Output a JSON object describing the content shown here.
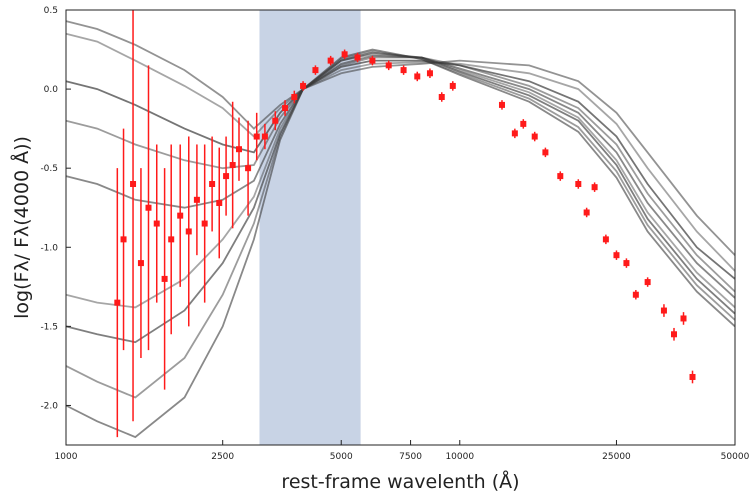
{
  "chart_data": {
    "type": "line",
    "xlabel": "rest-frame wavelenth (Å)",
    "ylabel": "log(Fλ/ Fλ(4000 Å))",
    "x_scale": "log",
    "xlim": [
      1000,
      50000
    ],
    "ylim": [
      -2.25,
      0.5
    ],
    "x_ticks": [
      {
        "value": 1000,
        "label": "1000"
      },
      {
        "value": 2500,
        "label": "2500"
      },
      {
        "value": 5000,
        "label": "5000"
      },
      {
        "value": 7500,
        "label": "7500"
      },
      {
        "value": 10000,
        "label": "10000"
      },
      {
        "value": 25000,
        "label": "25000"
      },
      {
        "value": 50000,
        "label": "50000"
      }
    ],
    "y_ticks": [
      {
        "value": 0.5,
        "label": "0.5"
      },
      {
        "value": 0.0,
        "label": "0.0"
      },
      {
        "value": -0.5,
        "label": "-0.5"
      },
      {
        "value": -1.0,
        "label": "-1.0"
      },
      {
        "value": -1.5,
        "label": "-1.5"
      },
      {
        "value": -2.0,
        "label": "-2.0"
      }
    ],
    "shaded_band": {
      "x0": 3100,
      "x1": 5600,
      "color": "#c8d3e5"
    },
    "grid": false,
    "model_color": "#3a3a3a",
    "data_color": "#ff1a1a",
    "models": [
      {
        "x": [
          1000,
          1200,
          1500,
          2000,
          2500,
          3000,
          3500,
          4000,
          5000,
          6000,
          8000,
          10000,
          15000,
          20000,
          25000,
          30000,
          40000,
          50000
        ],
        "y": [
          0.43,
          0.38,
          0.28,
          0.12,
          -0.05,
          -0.25,
          -0.1,
          0.0,
          0.1,
          0.14,
          0.16,
          0.18,
          0.15,
          0.05,
          -0.15,
          -0.4,
          -0.8,
          -1.05
        ]
      },
      {
        "x": [
          1000,
          1200,
          1500,
          2000,
          2500,
          3000,
          3500,
          4000,
          5000,
          6000,
          8000,
          10000,
          15000,
          20000,
          25000,
          30000,
          40000,
          50000
        ],
        "y": [
          0.35,
          0.3,
          0.18,
          0.02,
          -0.12,
          -0.3,
          -0.12,
          0.0,
          0.12,
          0.16,
          0.17,
          0.16,
          0.1,
          0.0,
          -0.22,
          -0.5,
          -0.9,
          -1.15
        ]
      },
      {
        "x": [
          1000,
          1200,
          1500,
          2000,
          2500,
          3000,
          3500,
          4000,
          5000,
          6000,
          8000,
          10000,
          15000,
          20000,
          25000,
          30000,
          40000,
          50000
        ],
        "y": [
          0.05,
          0.0,
          -0.1,
          -0.25,
          -0.35,
          -0.4,
          -0.15,
          0.0,
          0.14,
          0.18,
          0.18,
          0.15,
          0.05,
          -0.08,
          -0.3,
          -0.6,
          -1.0,
          -1.2
        ]
      },
      {
        "x": [
          1000,
          1200,
          1500,
          2000,
          2500,
          3000,
          3500,
          4000,
          5000,
          6000,
          8000,
          10000,
          15000,
          20000,
          25000,
          30000,
          40000,
          50000
        ],
        "y": [
          -0.2,
          -0.25,
          -0.35,
          -0.45,
          -0.5,
          -0.48,
          -0.18,
          0.0,
          0.15,
          0.2,
          0.2,
          0.15,
          0.02,
          -0.12,
          -0.35,
          -0.66,
          -1.05,
          -1.28
        ]
      },
      {
        "x": [
          1000,
          1200,
          1500,
          2000,
          2500,
          3000,
          3500,
          4000,
          5000,
          6000,
          8000,
          10000,
          15000,
          20000,
          25000,
          30000,
          40000,
          50000
        ],
        "y": [
          -0.55,
          -0.6,
          -0.7,
          -0.75,
          -0.7,
          -0.58,
          -0.22,
          0.0,
          0.16,
          0.21,
          0.2,
          0.13,
          0.0,
          -0.15,
          -0.4,
          -0.72,
          -1.1,
          -1.32
        ]
      },
      {
        "x": [
          1000,
          1200,
          1500,
          2000,
          2500,
          3000,
          3500,
          4000,
          5000,
          6000,
          8000,
          10000,
          15000,
          20000,
          25000,
          30000,
          40000,
          50000
        ],
        "y": [
          -1.3,
          -1.35,
          -1.38,
          -1.2,
          -0.95,
          -0.68,
          -0.25,
          0.0,
          0.18,
          0.22,
          0.2,
          0.12,
          -0.02,
          -0.18,
          -0.45,
          -0.78,
          -1.16,
          -1.38
        ]
      },
      {
        "x": [
          1000,
          1200,
          1500,
          2000,
          2500,
          3000,
          3500,
          4000,
          5000,
          6000,
          8000,
          10000,
          15000,
          20000,
          25000,
          30000,
          40000,
          50000
        ],
        "y": [
          -1.5,
          -1.55,
          -1.6,
          -1.4,
          -1.1,
          -0.75,
          -0.28,
          0.0,
          0.18,
          0.23,
          0.2,
          0.11,
          -0.04,
          -0.2,
          -0.48,
          -0.82,
          -1.2,
          -1.42
        ]
      },
      {
        "x": [
          1000,
          1200,
          1500,
          2000,
          2500,
          3000,
          3500,
          4000,
          5000,
          6000,
          8000,
          10000,
          15000,
          20000,
          25000,
          30000,
          40000,
          50000
        ],
        "y": [
          -1.75,
          -1.85,
          -1.95,
          -1.7,
          -1.3,
          -0.85,
          -0.3,
          0.0,
          0.19,
          0.24,
          0.19,
          0.1,
          -0.06,
          -0.24,
          -0.52,
          -0.86,
          -1.24,
          -1.46
        ]
      },
      {
        "x": [
          1000,
          1200,
          1500,
          2000,
          2500,
          3000,
          3500,
          4000,
          5000,
          6000,
          8000,
          10000,
          15000,
          20000,
          25000,
          30000,
          40000,
          50000
        ],
        "y": [
          -2.0,
          -2.1,
          -2.2,
          -1.95,
          -1.5,
          -0.95,
          -0.32,
          0.0,
          0.2,
          0.25,
          0.19,
          0.09,
          -0.08,
          -0.27,
          -0.56,
          -0.9,
          -1.28,
          -1.5
        ]
      }
    ],
    "observations": [
      {
        "x": 1350,
        "y": -1.35,
        "err": 0.85
      },
      {
        "x": 1400,
        "y": -0.95,
        "err": 0.7
      },
      {
        "x": 1480,
        "y": -0.6,
        "err": 1.5
      },
      {
        "x": 1550,
        "y": -1.1,
        "err": 0.6
      },
      {
        "x": 1620,
        "y": -0.75,
        "err": 0.9
      },
      {
        "x": 1700,
        "y": -0.85,
        "err": 0.5
      },
      {
        "x": 1780,
        "y": -1.2,
        "err": 0.7
      },
      {
        "x": 1850,
        "y": -0.95,
        "err": 0.6
      },
      {
        "x": 1950,
        "y": -0.8,
        "err": 0.45
      },
      {
        "x": 2050,
        "y": -0.9,
        "err": 0.6
      },
      {
        "x": 2150,
        "y": -0.7,
        "err": 0.35
      },
      {
        "x": 2250,
        "y": -0.85,
        "err": 0.5
      },
      {
        "x": 2350,
        "y": -0.6,
        "err": 0.3
      },
      {
        "x": 2450,
        "y": -0.72,
        "err": 0.35
      },
      {
        "x": 2550,
        "y": -0.55,
        "err": 0.25
      },
      {
        "x": 2650,
        "y": -0.48,
        "err": 0.4
      },
      {
        "x": 2750,
        "y": -0.38,
        "err": 0.2
      },
      {
        "x": 2900,
        "y": -0.5,
        "err": 0.3
      },
      {
        "x": 3050,
        "y": -0.3,
        "err": 0.15
      },
      {
        "x": 3200,
        "y": -0.3,
        "err": 0.08
      },
      {
        "x": 3400,
        "y": -0.2,
        "err": 0.06
      },
      {
        "x": 3600,
        "y": -0.12,
        "err": 0.05
      },
      {
        "x": 3800,
        "y": -0.05,
        "err": 0.04
      },
      {
        "x": 4000,
        "y": 0.02,
        "err": 0.03
      },
      {
        "x": 4300,
        "y": 0.12,
        "err": 0.03
      },
      {
        "x": 4700,
        "y": 0.18,
        "err": 0.03
      },
      {
        "x": 5100,
        "y": 0.22,
        "err": 0.03
      },
      {
        "x": 5500,
        "y": 0.2,
        "err": 0.03
      },
      {
        "x": 6000,
        "y": 0.18,
        "err": 0.03
      },
      {
        "x": 6600,
        "y": 0.15,
        "err": 0.03
      },
      {
        "x": 7200,
        "y": 0.12,
        "err": 0.03
      },
      {
        "x": 7800,
        "y": 0.08,
        "err": 0.03
      },
      {
        "x": 8400,
        "y": 0.1,
        "err": 0.03
      },
      {
        "x": 9000,
        "y": -0.05,
        "err": 0.03
      },
      {
        "x": 9600,
        "y": 0.02,
        "err": 0.03
      },
      {
        "x": 12800,
        "y": -0.1,
        "err": 0.03
      },
      {
        "x": 13800,
        "y": -0.28,
        "err": 0.03
      },
      {
        "x": 14500,
        "y": -0.22,
        "err": 0.03
      },
      {
        "x": 15500,
        "y": -0.3,
        "err": 0.03
      },
      {
        "x": 16500,
        "y": -0.4,
        "err": 0.03
      },
      {
        "x": 18000,
        "y": -0.55,
        "err": 0.03
      },
      {
        "x": 20000,
        "y": -0.6,
        "err": 0.03
      },
      {
        "x": 21000,
        "y": -0.78,
        "err": 0.03
      },
      {
        "x": 22000,
        "y": -0.62,
        "err": 0.03
      },
      {
        "x": 23500,
        "y": -0.95,
        "err": 0.03
      },
      {
        "x": 25000,
        "y": -1.05,
        "err": 0.03
      },
      {
        "x": 26500,
        "y": -1.1,
        "err": 0.03
      },
      {
        "x": 28000,
        "y": -1.3,
        "err": 0.03
      },
      {
        "x": 30000,
        "y": -1.22,
        "err": 0.03
      },
      {
        "x": 33000,
        "y": -1.4,
        "err": 0.04
      },
      {
        "x": 35000,
        "y": -1.55,
        "err": 0.04
      },
      {
        "x": 37000,
        "y": -1.45,
        "err": 0.04
      },
      {
        "x": 39000,
        "y": -1.82,
        "err": 0.04
      }
    ]
  }
}
